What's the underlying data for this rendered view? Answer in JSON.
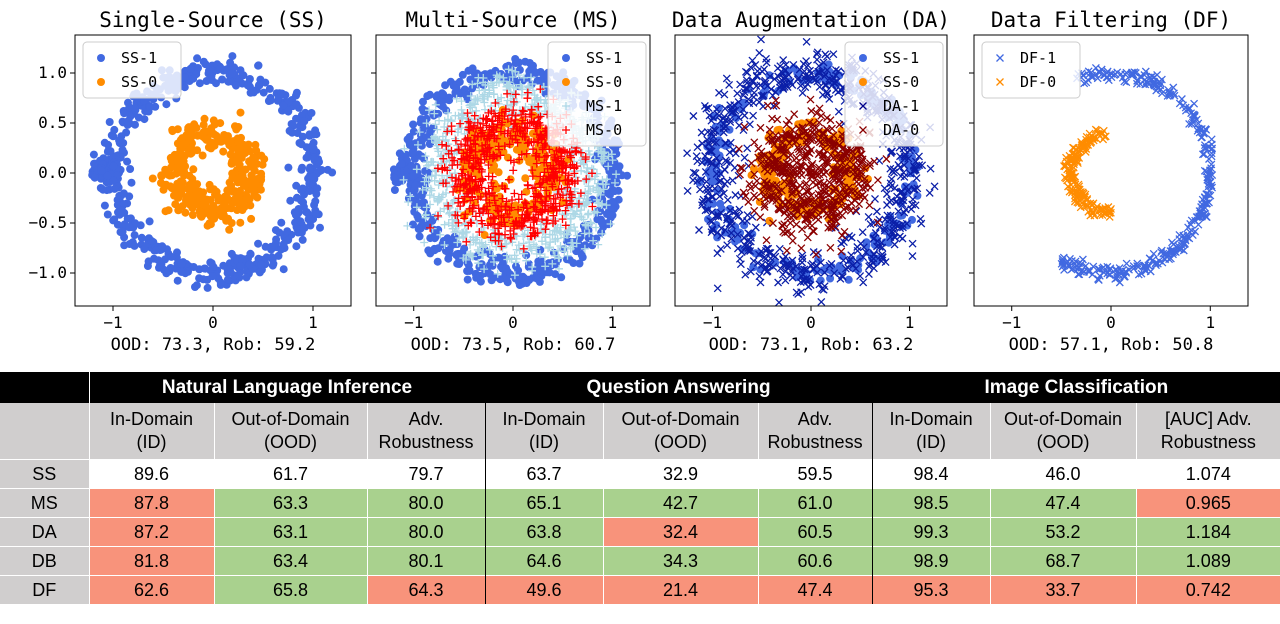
{
  "chart_data": [
    {
      "type": "scatter",
      "title": "Single-Source (SS)",
      "xlabel": "OOD: 73.3, Rob: 59.2",
      "xlim": [
        -1.38,
        1.38
      ],
      "ylim": [
        -1.33,
        1.38
      ],
      "xticks": [
        -1,
        0,
        1
      ],
      "yticks": [
        1.0,
        0.5,
        0.0,
        -0.5,
        -1.0
      ],
      "xtick_labels": [
        "−1",
        "0",
        "1"
      ],
      "ytick_labels": [
        "1.0",
        "0.5",
        "0.0",
        "−0.5",
        "−1.0"
      ],
      "legend_position": "top-left",
      "legend": [
        {
          "label": "SS-1",
          "color": "#4169e1",
          "marker": "circle"
        },
        {
          "label": "SS-0",
          "color": "#ff8c00",
          "marker": "circle"
        }
      ],
      "series": [
        {
          "name": "SS-1",
          "color": "#4169e1",
          "marker": "circle",
          "shape": "ring",
          "radius": 1.0,
          "spread": 0.07,
          "n": 520,
          "arc": [
            0,
            360
          ],
          "spike": {
            "x": [
              -1.22,
              -0.95
            ],
            "y": 0.0,
            "spread": 0.06
          }
        },
        {
          "name": "SS-0",
          "color": "#ff8c00",
          "marker": "circle",
          "shape": "ring",
          "radius": 0.38,
          "spread": 0.09,
          "n": 360,
          "arc": [
            0,
            360
          ]
        }
      ]
    },
    {
      "type": "scatter",
      "title": "Multi-Source (MS)",
      "xlabel": "OOD: 73.5, Rob: 60.7",
      "xlim": [
        -1.38,
        1.38
      ],
      "ylim": [
        -1.33,
        1.38
      ],
      "xticks": [
        -1,
        0,
        1
      ],
      "yticks": [
        1.0,
        0.5,
        0.0,
        -0.5,
        -1.0
      ],
      "xtick_labels": [
        "−1",
        "0",
        "1"
      ],
      "legend_position": "top-right",
      "legend": [
        {
          "label": "SS-1",
          "color": "#4169e1",
          "marker": "circle"
        },
        {
          "label": "SS-0",
          "color": "#ff8c00",
          "marker": "circle"
        },
        {
          "label": "MS-1",
          "color": "#add8e6",
          "marker": "plus"
        },
        {
          "label": "MS-0",
          "color": "#ff0000",
          "marker": "plus"
        }
      ],
      "series": [
        {
          "name": "SS-1",
          "color": "#4169e1",
          "marker": "circle",
          "shape": "ring",
          "radius": 1.0,
          "spread": 0.07,
          "n": 480,
          "arc": [
            0,
            360
          ],
          "spike": {
            "x": [
              -1.2,
              -0.95
            ],
            "y": 0.0,
            "spread": 0.06
          }
        },
        {
          "name": "MS-1",
          "color": "#add8e6",
          "marker": "plus",
          "shape": "ring",
          "radius": 0.78,
          "spread": 0.13,
          "n": 700,
          "arc": [
            0,
            360
          ]
        },
        {
          "name": "SS-0",
          "color": "#ff8c00",
          "marker": "circle",
          "shape": "ring",
          "radius": 0.4,
          "spread": 0.1,
          "n": 260,
          "arc": [
            0,
            360
          ]
        },
        {
          "name": "MS-0",
          "color": "#ff0000",
          "marker": "plus",
          "shape": "ring",
          "radius": 0.5,
          "spread": 0.14,
          "n": 620,
          "arc": [
            0,
            360
          ]
        }
      ]
    },
    {
      "type": "scatter",
      "title": "Data Augmentation (DA)",
      "xlabel": "OOD: 73.1, Rob: 63.2",
      "xlim": [
        -1.38,
        1.38
      ],
      "ylim": [
        -1.33,
        1.38
      ],
      "xticks": [
        -1,
        0,
        1
      ],
      "yticks": [
        1.0,
        0.5,
        0.0,
        -0.5,
        -1.0
      ],
      "xtick_labels": [
        "−1",
        "0",
        "1"
      ],
      "legend_position": "top-right",
      "legend": [
        {
          "label": "SS-1",
          "color": "#4169e1",
          "marker": "circle"
        },
        {
          "label": "SS-0",
          "color": "#ff8c00",
          "marker": "circle"
        },
        {
          "label": "DA-1",
          "color": "#00008b",
          "marker": "x"
        },
        {
          "label": "DA-0",
          "color": "#8b0000",
          "marker": "x"
        }
      ],
      "series": [
        {
          "name": "SS-1",
          "color": "#4169e1",
          "marker": "circle",
          "shape": "ring",
          "radius": 1.0,
          "spread": 0.06,
          "n": 220,
          "arc": [
            0,
            360
          ]
        },
        {
          "name": "DA-1",
          "color": "#0b1fa8",
          "marker": "x",
          "shape": "ring",
          "radius": 1.0,
          "spread": 0.13,
          "n": 650,
          "arc": [
            0,
            360
          ]
        },
        {
          "name": "SS-0",
          "color": "#ff8c00",
          "marker": "circle",
          "shape": "ring",
          "radius": 0.4,
          "spread": 0.08,
          "n": 200,
          "arc": [
            0,
            360
          ]
        },
        {
          "name": "DA-0",
          "color": "#8b0000",
          "marker": "x",
          "shape": "ring",
          "radius": 0.4,
          "spread": 0.16,
          "n": 520,
          "arc": [
            0,
            360
          ]
        }
      ]
    },
    {
      "type": "scatter",
      "title": "Data Filtering (DF)",
      "xlabel": "OOD: 57.1, Rob: 50.8",
      "xlim": [
        -1.38,
        1.38
      ],
      "ylim": [
        -1.33,
        1.38
      ],
      "xticks": [
        -1,
        0,
        1
      ],
      "yticks": [
        1.0,
        0.5,
        0.0,
        -0.5,
        -1.0
      ],
      "xtick_labels": [
        "−1",
        "0",
        "1"
      ],
      "legend_position": "top-left",
      "legend": [
        {
          "label": "DF-1",
          "color": "#4169e1",
          "marker": "x"
        },
        {
          "label": "DF-0",
          "color": "#ff8c00",
          "marker": "x"
        }
      ],
      "series": [
        {
          "name": "DF-1",
          "color": "#4169e1",
          "marker": "x",
          "shape": "ring",
          "radius": 1.0,
          "spread": 0.035,
          "n": 340,
          "arc": [
            -120,
            110
          ]
        },
        {
          "name": "DF-0",
          "color": "#ff8c00",
          "marker": "x",
          "shape": "ring",
          "radius": 0.4,
          "spread": 0.035,
          "n": 170,
          "arc": [
            95,
            270
          ]
        }
      ]
    },
    {
      "type": "table",
      "groups": [
        "Natural Language Inference",
        "Question Answering",
        "Image Classification"
      ],
      "columns": [
        "In-Domain\n(ID)",
        "Out-of-Domain\n(OOD)",
        "Adv.\nRobustness",
        "In-Domain\n(ID)",
        "Out-of-Domain\n(OOD)",
        "Adv.\nRobustness",
        "In-Domain\n(ID)",
        "Out-of-Domain\n(OOD)",
        "[AUC] Adv.\nRobustness"
      ],
      "cell_colors": {
        "good": "#a9d18e",
        "bad": "#f8937b",
        "none": "#ffffff"
      },
      "rows": [
        {
          "label": "SS",
          "values": [
            "89.6",
            "61.7",
            "79.7",
            "63.7",
            "32.9",
            "59.5",
            "98.4",
            "46.0",
            "1.074"
          ],
          "status": [
            "none",
            "none",
            "none",
            "none",
            "none",
            "none",
            "none",
            "none",
            "none"
          ]
        },
        {
          "label": "MS",
          "values": [
            "87.8",
            "63.3",
            "80.0",
            "65.1",
            "42.7",
            "61.0",
            "98.5",
            "47.4",
            "0.965"
          ],
          "status": [
            "bad",
            "good",
            "good",
            "good",
            "good",
            "good",
            "good",
            "good",
            "bad"
          ]
        },
        {
          "label": "DA",
          "values": [
            "87.2",
            "63.1",
            "80.0",
            "63.8",
            "32.4",
            "60.5",
            "99.3",
            "53.2",
            "1.184"
          ],
          "status": [
            "bad",
            "good",
            "good",
            "good",
            "bad",
            "good",
            "good",
            "good",
            "good"
          ]
        },
        {
          "label": "DB",
          "values": [
            "81.8",
            "63.4",
            "80.1",
            "64.6",
            "34.3",
            "60.6",
            "98.9",
            "68.7",
            "1.089"
          ],
          "status": [
            "bad",
            "good",
            "good",
            "good",
            "good",
            "good",
            "good",
            "good",
            "good"
          ]
        },
        {
          "label": "DF",
          "values": [
            "62.6",
            "65.8",
            "64.3",
            "49.6",
            "21.4",
            "47.4",
            "95.3",
            "33.7",
            "0.742"
          ],
          "status": [
            "bad",
            "good",
            "bad",
            "bad",
            "bad",
            "bad",
            "bad",
            "bad",
            "bad"
          ]
        }
      ]
    }
  ]
}
